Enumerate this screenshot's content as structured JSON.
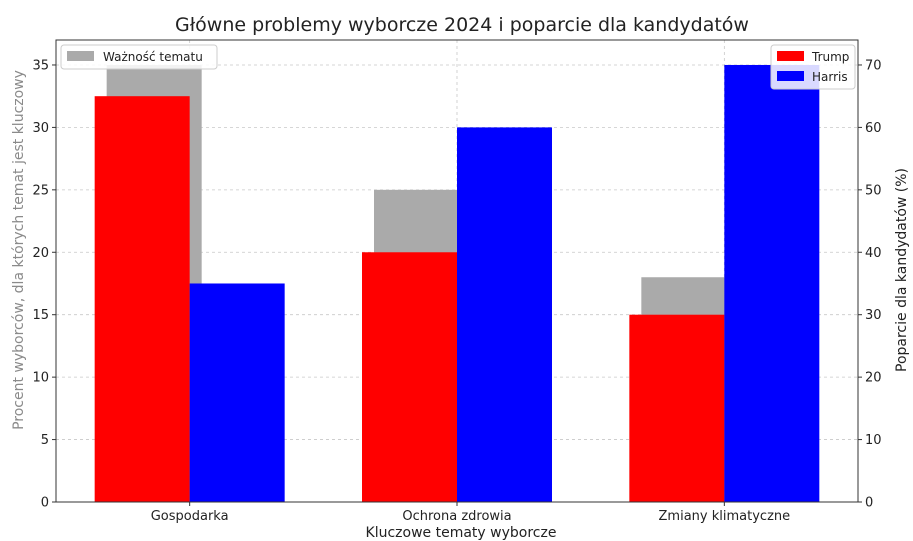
{
  "chart_data": {
    "type": "bar",
    "title": "Główne problemy wyborcze 2024 i poparcie dla kandydatów",
    "xlabel": "Kluczowe tematy wyborcze",
    "ylabel_left": "Procent wyborców, dla których temat jest kluczowy",
    "ylabel_right": "Poparcie dla kandydatów (%)",
    "categories": [
      "Gospodarka",
      "Ochrona zdrowia",
      "Zmiany klimatyczne"
    ],
    "ylim_left": [
      0,
      37
    ],
    "ylim_right": [
      0,
      74
    ],
    "yticks_left": [
      "0",
      "5",
      "10",
      "15",
      "20",
      "25",
      "30",
      "35"
    ],
    "yticks_right": [
      "0",
      "10",
      "20",
      "30",
      "40",
      "50",
      "60",
      "70"
    ],
    "grid": true,
    "series": [
      {
        "name": "Ważność tematu",
        "axis": "left",
        "color": "#aaaaaa",
        "values": [
          35,
          25,
          18
        ]
      },
      {
        "name": "Trump",
        "axis": "right",
        "color": "#ff0000",
        "values": [
          65,
          40,
          30
        ]
      },
      {
        "name": "Harris",
        "axis": "right",
        "color": "#0000ff",
        "values": [
          35,
          60,
          70
        ]
      }
    ],
    "legend_left_placement": "top-left",
    "legend_right_placement": "top-right"
  }
}
